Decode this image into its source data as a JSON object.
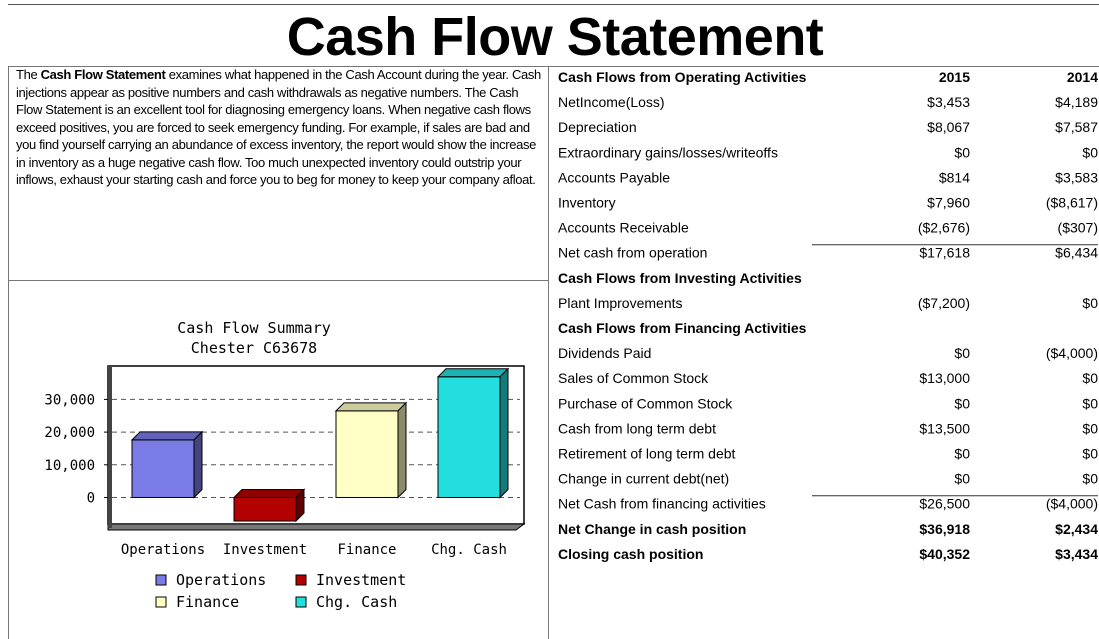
{
  "title": "Cash Flow Statement",
  "description": {
    "before": "The ",
    "bold": "Cash Flow Statement",
    "after": " examines what happened in the Cash Account during the year. Cash injections appear as positive numbers and cash withdrawals as negative numbers. The Cash Flow Statement is an excellent tool for diagnosing emergency loans. When negative cash flows exceed positives, you are forced to seek emergency funding. For example, if sales are bad and you find yourself carrying an abundance of excess inventory, the report would show the increase in inventory as a huge negative cash flow. Too much unexpected inventory could outstrip your inflows, exhaust your starting cash and force you to beg for money to keep your company afloat."
  },
  "chart_data": {
    "type": "bar",
    "title": "Cash Flow Summary",
    "subtitle": "Chester C63678",
    "categories": [
      "Operations",
      "Investment",
      "Finance",
      "Chg. Cash"
    ],
    "values": [
      17618,
      -7200,
      26500,
      36918
    ],
    "colors": [
      "#7b7be6",
      "#b30000",
      "#ffffc6",
      "#22dede"
    ],
    "ylim": [
      -7500,
      39000
    ],
    "yticks": [
      0,
      {
        "value": 10000,
        "label": "10,000"
      },
      {
        "value": 20000,
        "label": "20,000"
      },
      {
        "value": 30000,
        "label": "30,000"
      }
    ],
    "grid": true
  },
  "table": {
    "rows": [
      {
        "cells": [
          "Cash Flows from Operating Activities",
          "2015",
          "2014"
        ],
        "bold": true
      },
      {
        "cells": [
          "NetIncome(Loss)",
          "$3,453",
          "$4,189"
        ]
      },
      {
        "cells": [
          "Depreciation",
          "$8,067",
          "$7,587"
        ]
      },
      {
        "cells": [
          "Extraordinary gains/losses/writeoffs",
          "$0",
          "$0"
        ]
      },
      {
        "cells": [
          "Accounts Payable",
          "$814",
          "$3,583"
        ]
      },
      {
        "cells": [
          "Inventory",
          "$7,960",
          "($8,617)"
        ]
      },
      {
        "cells": [
          "Accounts Receivable",
          "($2,676)",
          "($307)"
        ]
      },
      {
        "cells": [
          "Net cash from operation",
          "$17,618",
          "$6,434"
        ],
        "rule": true
      },
      {
        "cells": [
          "Cash Flows from Investing Activities"
        ],
        "bold": true
      },
      {
        "cells": [
          "Plant Improvements",
          "($7,200)",
          "$0"
        ]
      },
      {
        "cells": [
          "Cash Flows from Financing Activities"
        ],
        "bold": true
      },
      {
        "cells": [
          "Dividends Paid",
          "$0",
          "($4,000)"
        ]
      },
      {
        "cells": [
          "Sales of Common Stock",
          "$13,000",
          "$0"
        ]
      },
      {
        "cells": [
          "Purchase of Common Stock",
          "$0",
          "$0"
        ]
      },
      {
        "cells": [
          "Cash from long term debt",
          "$13,500",
          "$0"
        ]
      },
      {
        "cells": [
          "Retirement of long term debt",
          "$0",
          "$0"
        ]
      },
      {
        "cells": [
          "Change in current debt(net)",
          "$0",
          "$0"
        ]
      },
      {
        "cells": [
          "Net Cash from financing activities",
          "$26,500",
          "($4,000)"
        ],
        "rule": true
      },
      {
        "cells": [
          "Net Change in cash position",
          "$36,918",
          "$2,434"
        ],
        "bold": true
      },
      {
        "cells": [
          "Closing cash position",
          "$40,352",
          "$3,434"
        ],
        "bold": true
      }
    ]
  }
}
